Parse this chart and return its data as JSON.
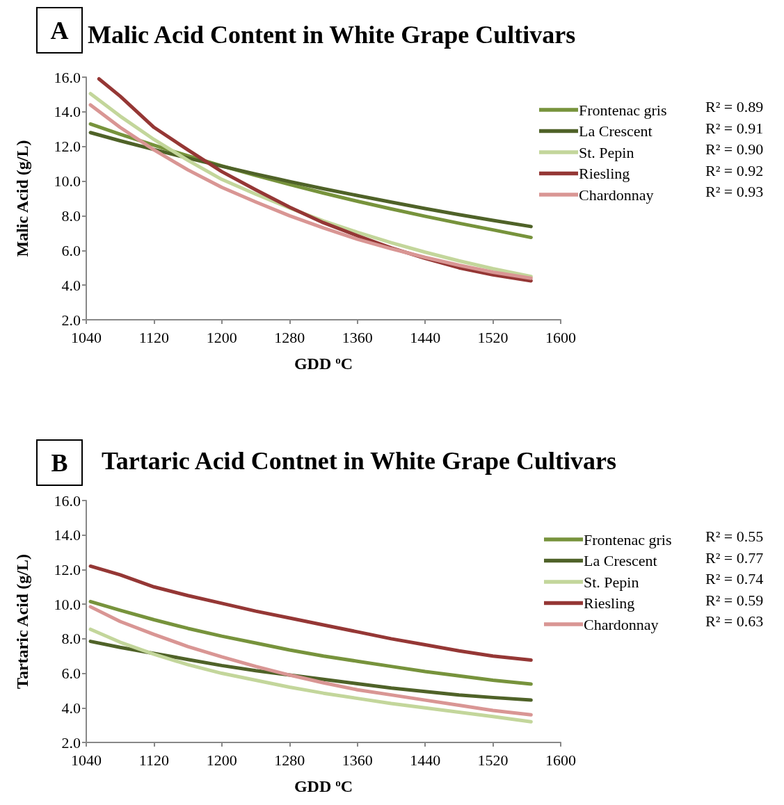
{
  "chart_data": [
    {
      "type": "line",
      "title": "Malic Acid Content in White Grape Cultivars",
      "xlabel": "GDD $^{o}$C",
      "ylabel": "Malic Acid (g/L)",
      "annotations": [
        "A",
        "R² = 0.89",
        "R² = 0.91",
        "R² = 0.90",
        "R² = 0.92",
        "R² = 0.93"
      ],
      "x": [
        1045,
        1080,
        1120,
        1160,
        1200,
        1240,
        1280,
        1320,
        1360,
        1400,
        1440,
        1480,
        1520,
        1565
      ],
      "series": [
        {
          "name": "Frontenac gris",
          "color": "#77933c",
          "values": [
            13.3,
            12.71,
            12.07,
            11.46,
            10.88,
            10.33,
            9.81,
            9.31,
            8.84,
            8.4,
            7.97,
            7.57,
            7.19,
            6.75
          ]
        },
        {
          "name": "La Crescent",
          "color": "#4f6228",
          "values": [
            12.8,
            12.33,
            11.82,
            11.33,
            10.86,
            10.41,
            9.98,
            9.56,
            9.17,
            8.79,
            8.42,
            8.07,
            7.74,
            7.38
          ]
        },
        {
          "name": "St. Pepin",
          "color": "#c3d69b",
          "values": [
            15.05,
            13.75,
            12.4,
            11.2,
            10.1,
            9.25,
            8.45,
            7.7,
            7.05,
            6.45,
            5.9,
            5.4,
            4.95,
            4.5
          ]
        },
        {
          "name": "Riesling",
          "color": "#953735",
          "x": [
            1055,
            1080,
            1120,
            1160,
            1200,
            1240,
            1280,
            1320,
            1360,
            1400,
            1440,
            1480,
            1520,
            1565
          ],
          "values": [
            15.9,
            14.9,
            13.1,
            11.8,
            10.55,
            9.5,
            8.5,
            7.6,
            6.85,
            6.15,
            5.55,
            5.0,
            4.6,
            4.25
          ]
        },
        {
          "name": "Chardonnay",
          "color": "#d99694",
          "values": [
            14.4,
            13.1,
            11.8,
            10.65,
            9.64,
            8.8,
            8.0,
            7.3,
            6.65,
            6.1,
            5.6,
            5.15,
            4.75,
            4.4
          ]
        }
      ],
      "xlim": [
        1040,
        1600
      ],
      "xticks": [
        1040,
        1120,
        1200,
        1280,
        1360,
        1440,
        1520,
        1600
      ],
      "ylim": [
        2,
        16
      ],
      "yticks": [
        {
          "value": 2,
          "label": "2.0"
        },
        {
          "value": 4,
          "label": "4.0"
        },
        {
          "value": 6,
          "label": "6.0"
        },
        {
          "value": 8,
          "label": "8.0"
        },
        {
          "value": 10,
          "label": "10.0"
        },
        {
          "value": 12,
          "label": "12.0"
        },
        {
          "value": 14,
          "label": "14.0"
        },
        {
          "value": 16,
          "label": "16.0"
        }
      ],
      "grid": false,
      "legend": "right",
      "marker": "none",
      "line_style": "solid"
    },
    {
      "type": "line",
      "title": "Tartaric Acid Contnet in White Grape Cultivars",
      "xlabel": "GDD $^{o}$C",
      "ylabel": "Tartaric Acid (g/L)",
      "annotations": [
        "B",
        "R² = 0.55",
        "R² = 0.77",
        "R² = 0.74",
        "R² = 0.59",
        "R² = 0.63"
      ],
      "x": [
        1045,
        1080,
        1120,
        1160,
        1200,
        1240,
        1280,
        1320,
        1360,
        1400,
        1440,
        1480,
        1520,
        1565
      ],
      "series": [
        {
          "name": "Frontenac gris",
          "color": "#77933c",
          "values": [
            10.15,
            9.65,
            9.1,
            8.6,
            8.15,
            7.75,
            7.35,
            7.0,
            6.7,
            6.4,
            6.1,
            5.85,
            5.6,
            5.38
          ]
        },
        {
          "name": "La Crescent",
          "color": "#4f6228",
          "values": [
            7.85,
            7.5,
            7.15,
            6.8,
            6.45,
            6.15,
            5.9,
            5.65,
            5.4,
            5.15,
            4.95,
            4.75,
            4.6,
            4.45
          ]
        },
        {
          "name": "St. Pepin",
          "color": "#c3d69b",
          "values": [
            8.55,
            7.8,
            7.1,
            6.5,
            6.0,
            5.6,
            5.2,
            4.85,
            4.55,
            4.25,
            4.0,
            3.75,
            3.5,
            3.2
          ]
        },
        {
          "name": "Riesling",
          "color": "#953735",
          "values": [
            12.2,
            11.7,
            11.0,
            10.5,
            10.05,
            9.6,
            9.2,
            8.8,
            8.4,
            8.0,
            7.65,
            7.3,
            7.0,
            6.77
          ]
        },
        {
          "name": "Chardonnay",
          "color": "#d99694",
          "values": [
            9.85,
            9.0,
            8.25,
            7.55,
            6.95,
            6.4,
            5.9,
            5.45,
            5.05,
            4.75,
            4.45,
            4.15,
            3.85,
            3.6
          ]
        }
      ],
      "xlim": [
        1040,
        1600
      ],
      "xticks": [
        1040,
        1120,
        1200,
        1280,
        1360,
        1440,
        1520,
        1600
      ],
      "ylim": [
        2,
        16
      ],
      "yticks": [
        {
          "value": 2,
          "label": "2.0"
        },
        {
          "value": 4,
          "label": "4.0"
        },
        {
          "value": 6,
          "label": "6.0"
        },
        {
          "value": 8,
          "label": "8.0"
        },
        {
          "value": 10,
          "label": "10.0"
        },
        {
          "value": 12,
          "label": "12.0"
        },
        {
          "value": 14,
          "label": "14.0"
        },
        {
          "value": 16,
          "label": "16.0"
        }
      ],
      "grid": false,
      "legend": "right",
      "marker": "none",
      "line_style": "solid"
    }
  ]
}
